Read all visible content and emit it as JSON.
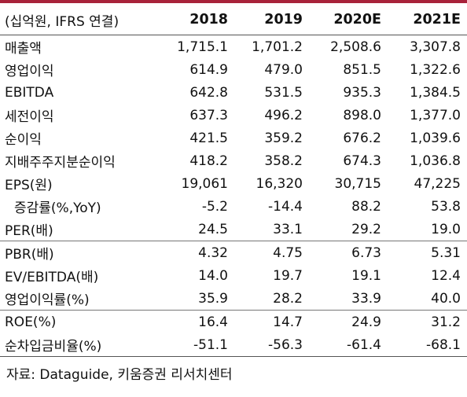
{
  "table": {
    "unit_label": "(십억원, IFRS 연결)",
    "columns": [
      "2018",
      "2019",
      "2020E",
      "2021E"
    ],
    "rows": [
      {
        "label": "매출액",
        "values": [
          "1,715.1",
          "1,701.2",
          "2,508.6",
          "3,307.8"
        ]
      },
      {
        "label": "영업이익",
        "values": [
          "614.9",
          "479.0",
          "851.5",
          "1,322.6"
        ]
      },
      {
        "label": "EBITDA",
        "values": [
          "642.8",
          "531.5",
          "935.3",
          "1,384.5"
        ]
      },
      {
        "label": "세전이익",
        "values": [
          "637.3",
          "496.2",
          "898.0",
          "1,377.0"
        ]
      },
      {
        "label": "순이익",
        "values": [
          "421.5",
          "359.2",
          "676.2",
          "1,039.6"
        ]
      },
      {
        "label": "지배주주지분순이익",
        "values": [
          "418.2",
          "358.2",
          "674.3",
          "1,036.8"
        ]
      },
      {
        "label": "EPS(원)",
        "values": [
          "19,061",
          "16,320",
          "30,715",
          "47,225"
        ]
      },
      {
        "label": "증감률(%,YoY)",
        "values": [
          "-5.2",
          "-14.4",
          "88.2",
          "53.8"
        ]
      },
      {
        "label": "PER(배)",
        "values": [
          "24.5",
          "33.1",
          "29.2",
          "19.0"
        ]
      },
      {
        "label": "PBR(배)",
        "values": [
          "4.32",
          "4.75",
          "6.73",
          "5.31"
        ]
      },
      {
        "label": "EV/EBITDA(배)",
        "values": [
          "14.0",
          "19.7",
          "19.1",
          "12.4"
        ]
      },
      {
        "label": "영업이익률(%)",
        "values": [
          "35.9",
          "28.2",
          "33.9",
          "40.0"
        ]
      },
      {
        "label": "ROE(%)",
        "values": [
          "16.4",
          "14.7",
          "24.9",
          "31.2"
        ]
      },
      {
        "label": "순차입금비율(%)",
        "values": [
          "-51.1",
          "-56.3",
          "-61.4",
          "-68.1"
        ]
      }
    ]
  },
  "source": "자료: Dataguide, 키움증권 리서치센터",
  "colors": {
    "accent_line": "#a8223a"
  }
}
